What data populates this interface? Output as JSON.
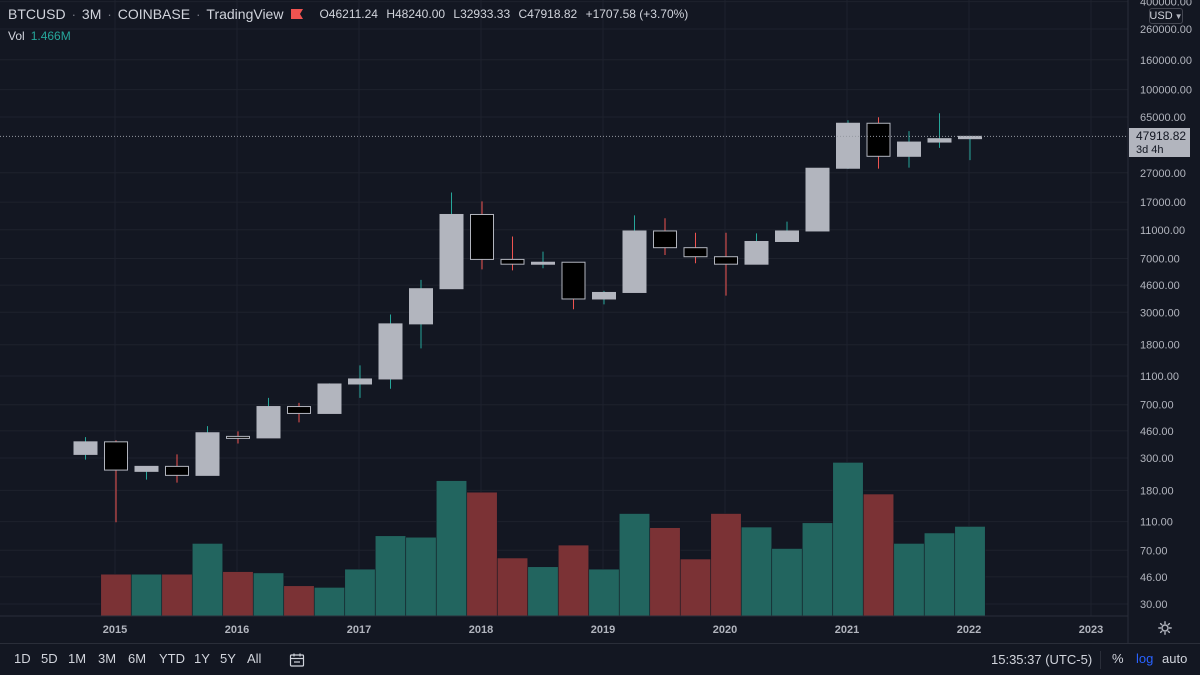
{
  "header": {
    "symbol": "BTCUSD",
    "interval": "3M",
    "exchange": "COINBASE",
    "source": "TradingView",
    "separator": "·",
    "ohlc": {
      "o_label": "O",
      "o": "46211.24",
      "h_label": "H",
      "h": "48240.00",
      "l_label": "L",
      "l": "32933.33",
      "c_label": "C",
      "c": "47918.82",
      "change": "+1707.58 (+3.70%)"
    },
    "volume": {
      "label": "Vol",
      "value": "1.466M"
    },
    "currency": "USD"
  },
  "price_axis": {
    "ticks": [
      "400000.00",
      "260000.00",
      "160000.00",
      "100000.00",
      "65000.00",
      "27000.00",
      "17000.00",
      "11000.00",
      "7000.00",
      "4600.00",
      "3000.00",
      "1800.00",
      "1100.00",
      "700.00",
      "460.00",
      "300.00",
      "180.00",
      "110.00",
      "70.00",
      "46.00",
      "30.00"
    ],
    "last_price": "47918.82",
    "countdown": "3d 4h"
  },
  "time_axis": {
    "labels": [
      "2015",
      "2016",
      "2017",
      "2018",
      "2019",
      "2020",
      "2021",
      "2022",
      "2023"
    ]
  },
  "toolbar": {
    "ranges": [
      "1D",
      "5D",
      "1M",
      "3M",
      "6M",
      "YTD",
      "1Y",
      "5Y",
      "All"
    ],
    "clock": "15:35:37 (UTC-5)",
    "percent": "%",
    "log": "log",
    "auto": "auto"
  },
  "colors": {
    "background": "#131722",
    "grid": "#1e222d",
    "up_body": "#b2b5be",
    "down_body": "#000000",
    "up_wick": "#26a69a",
    "down_wick": "#ef5350",
    "vol_up": "#22655f",
    "vol_down": "#7b3235",
    "axis_text": "#b2b5be",
    "accent": "#2962ff"
  },
  "chart_data": {
    "type": "candlestick",
    "scale": "log",
    "x_labels": [
      "2015",
      "2016",
      "2017",
      "2018",
      "2019",
      "2020",
      "2021",
      "2022",
      "2023"
    ],
    "candles": [
      {
        "o": 320,
        "h": 420,
        "l": 295,
        "c": 390
      },
      {
        "o": 390,
        "h": 400,
        "l": 110,
        "c": 250
      },
      {
        "o": 245,
        "h": 265,
        "l": 215,
        "c": 265
      },
      {
        "o": 265,
        "h": 320,
        "l": 205,
        "c": 230
      },
      {
        "o": 230,
        "h": 500,
        "l": 230,
        "c": 450
      },
      {
        "o": 425,
        "h": 460,
        "l": 380,
        "c": 415
      },
      {
        "o": 415,
        "h": 780,
        "l": 415,
        "c": 680
      },
      {
        "o": 680,
        "h": 720,
        "l": 530,
        "c": 610
      },
      {
        "o": 610,
        "h": 980,
        "l": 610,
        "c": 970
      },
      {
        "o": 970,
        "h": 1300,
        "l": 780,
        "c": 1050
      },
      {
        "o": 1050,
        "h": 2900,
        "l": 900,
        "c": 2500
      },
      {
        "o": 2500,
        "h": 5000,
        "l": 1700,
        "c": 4350
      },
      {
        "o": 4350,
        "h": 19800,
        "l": 4350,
        "c": 14000
      },
      {
        "o": 14000,
        "h": 17200,
        "l": 5900,
        "c": 6900
      },
      {
        "o": 6900,
        "h": 9900,
        "l": 5800,
        "c": 6400
      },
      {
        "o": 6400,
        "h": 7800,
        "l": 6000,
        "c": 6600
      },
      {
        "o": 6600,
        "h": 6600,
        "l": 3150,
        "c": 3700
      },
      {
        "o": 3700,
        "h": 4200,
        "l": 3400,
        "c": 4100
      },
      {
        "o": 4100,
        "h": 13800,
        "l": 4100,
        "c": 10800
      },
      {
        "o": 10800,
        "h": 13200,
        "l": 7400,
        "c": 8300
      },
      {
        "o": 8300,
        "h": 10500,
        "l": 6500,
        "c": 7200
      },
      {
        "o": 7200,
        "h": 10500,
        "l": 3900,
        "c": 6400
      },
      {
        "o": 6400,
        "h": 10400,
        "l": 6400,
        "c": 9150
      },
      {
        "o": 9150,
        "h": 12500,
        "l": 9150,
        "c": 10800
      },
      {
        "o": 10800,
        "h": 29000,
        "l": 10800,
        "c": 29000
      },
      {
        "o": 29000,
        "h": 61800,
        "l": 28700,
        "c": 58900
      },
      {
        "o": 58900,
        "h": 64800,
        "l": 28800,
        "c": 35000
      },
      {
        "o": 35000,
        "h": 52000,
        "l": 29300,
        "c": 43800
      },
      {
        "o": 43800,
        "h": 69000,
        "l": 40000,
        "c": 46200
      },
      {
        "o": 46211.24,
        "h": 48240,
        "l": 32933.33,
        "c": 47918.82
      }
    ],
    "volume": [
      {
        "v": 24,
        "dir": "up"
      },
      {
        "v": 48,
        "dir": "down"
      },
      {
        "v": 48,
        "dir": "up"
      },
      {
        "v": 48,
        "dir": "down"
      },
      {
        "v": 78,
        "dir": "up"
      },
      {
        "v": 50,
        "dir": "down"
      },
      {
        "v": 49,
        "dir": "up"
      },
      {
        "v": 40,
        "dir": "down"
      },
      {
        "v": 39,
        "dir": "up"
      },
      {
        "v": 52,
        "dir": "up"
      },
      {
        "v": 88,
        "dir": "up"
      },
      {
        "v": 86,
        "dir": "up"
      },
      {
        "v": 210,
        "dir": "up"
      },
      {
        "v": 175,
        "dir": "down"
      },
      {
        "v": 62,
        "dir": "down"
      },
      {
        "v": 54,
        "dir": "up"
      },
      {
        "v": 76,
        "dir": "down"
      },
      {
        "v": 52,
        "dir": "up"
      },
      {
        "v": 125,
        "dir": "up"
      },
      {
        "v": 100,
        "dir": "down"
      },
      {
        "v": 61,
        "dir": "down"
      },
      {
        "v": 125,
        "dir": "down"
      },
      {
        "v": 101,
        "dir": "up"
      },
      {
        "v": 72,
        "dir": "up"
      },
      {
        "v": 108,
        "dir": "up"
      },
      {
        "v": 280,
        "dir": "up"
      },
      {
        "v": 170,
        "dir": "down"
      },
      {
        "v": 78,
        "dir": "up"
      },
      {
        "v": 92,
        "dir": "up"
      },
      {
        "v": 102,
        "dir": "up"
      }
    ]
  }
}
